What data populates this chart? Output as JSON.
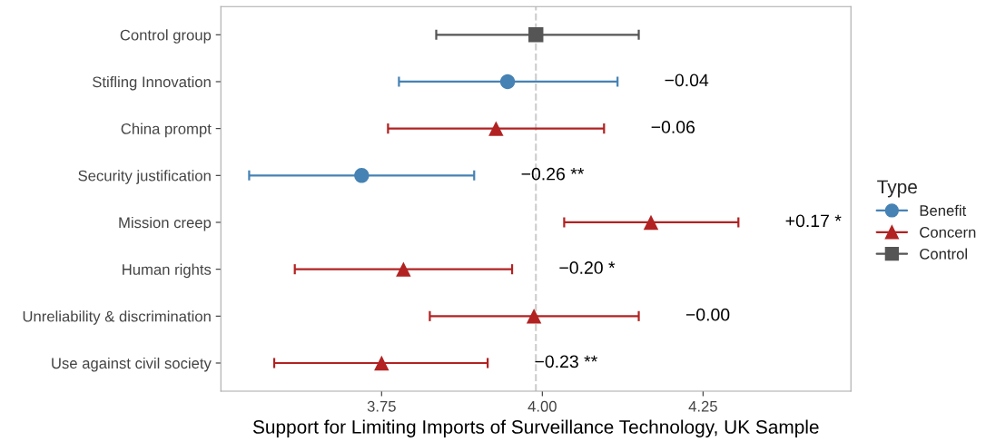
{
  "chart_data": {
    "type": "scatter",
    "orientation": "horizontal",
    "xlabel": "Support for Limiting Imports of Surveillance Technology, UK Sample",
    "legend_title": "Type",
    "legend": "right",
    "grid": false,
    "categories": [
      "Control group",
      "Stifling Innovation",
      "China prompt",
      "Security justification",
      "Mission creep",
      "Human rights",
      "Unreliability & discrimination",
      "Use against civil society"
    ],
    "xlim": [
      3.5,
      4.48
    ],
    "xticks": [
      3.75,
      {
        "value": 4,
        "label": "4.00"
      },
      {
        "value": 4.25,
        "label": "4.25"
      }
    ],
    "series": [
      {
        "name": "Benefit",
        "color": "#4682b4",
        "marker": "circle",
        "values": [
          null,
          3.946,
          null,
          3.719,
          null,
          null,
          null,
          null
        ],
        "errors": [
          null,
          [
            3.777,
            4.117
          ],
          null,
          [
            3.544,
            3.894
          ],
          null,
          null,
          null,
          null
        ]
      },
      {
        "name": "Concern",
        "color": "#b22222",
        "marker": "triangle",
        "values": [
          null,
          null,
          3.928,
          null,
          4.169,
          3.784,
          3.987,
          3.75
        ],
        "errors": [
          null,
          null,
          [
            3.76,
            4.096
          ],
          null,
          [
            4.034,
            4.305
          ],
          [
            3.615,
            3.953
          ],
          [
            3.825,
            4.15
          ],
          [
            3.583,
            3.915
          ]
        ]
      },
      {
        "name": "Control",
        "color": "#555555",
        "marker": "square",
        "values": [
          3.99,
          null,
          null,
          null,
          null,
          null,
          null,
          null
        ],
        "errors": [
          [
            3.835,
            4.15
          ],
          null,
          null,
          null,
          null,
          null,
          null,
          null
        ]
      }
    ],
    "ref_lines": [
      {
        "axis": "x",
        "value": 3.99,
        "color": "#cccccc",
        "line_style": "dashed"
      }
    ],
    "annotations": [
      "−0.04",
      "−0.06",
      "−0.26 **",
      "+0.17 *",
      "−0.20 *",
      "−0.00",
      "−0.23 **"
    ]
  }
}
